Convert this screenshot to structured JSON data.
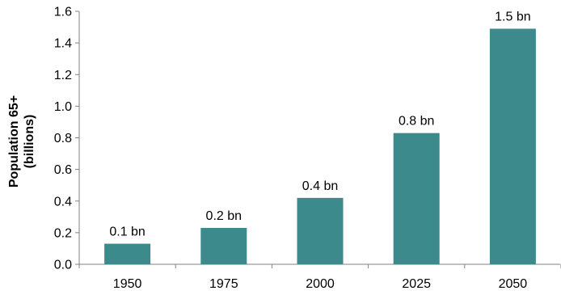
{
  "chart_data": {
    "type": "bar",
    "title": "",
    "xlabel": "",
    "ylabel_lines": [
      "Population 65+",
      "(billions)"
    ],
    "categories": [
      "1950",
      "1975",
      "2000",
      "2025",
      "2050"
    ],
    "values": [
      0.13,
      0.23,
      0.42,
      0.83,
      1.49
    ],
    "data_labels": [
      "0.1 bn",
      "0.2 bn",
      "0.4 bn",
      "0.8 bn",
      "1.5 bn"
    ],
    "ylim": [
      0,
      1.6
    ],
    "yticks": [
      "0.0",
      "0.2",
      "0.4",
      "0.6",
      "0.8",
      "1.0",
      "1.2",
      "1.4",
      "1.6"
    ],
    "grid": false,
    "legend": "none",
    "colors": {
      "bar": "#3d8a8c",
      "axis": "#808080",
      "text": "#000000"
    }
  }
}
